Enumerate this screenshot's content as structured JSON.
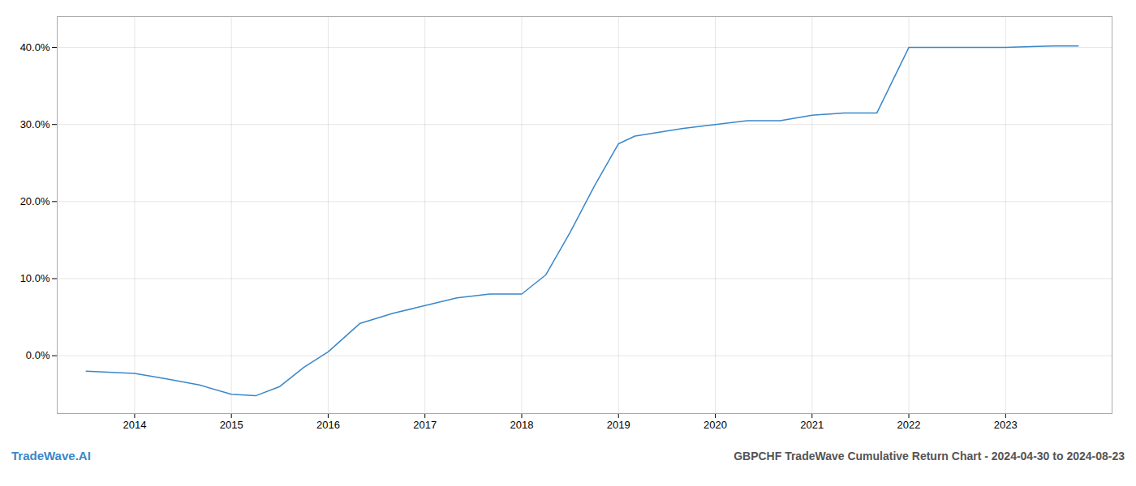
{
  "chart_data": {
    "type": "line",
    "title": "GBPCHF TradeWave Cumulative Return Chart - 2024-04-30 to 2024-08-23",
    "annotations": [
      {
        "text": "TradeWave.AI",
        "color": "#3a87c8"
      }
    ],
    "x": [
      2013.5,
      2014.0,
      2014.33,
      2014.67,
      2015.0,
      2015.25,
      2015.5,
      2015.75,
      2016.0,
      2016.33,
      2016.67,
      2017.0,
      2017.33,
      2017.67,
      2017.92,
      2018.0,
      2018.25,
      2018.5,
      2018.75,
      2019.0,
      2019.17,
      2019.42,
      2019.67,
      2020.0,
      2020.33,
      2020.67,
      2021.0,
      2021.33,
      2021.5,
      2021.67,
      2022.0,
      2022.33,
      2022.67,
      2023.0,
      2023.5,
      2023.75
    ],
    "values": [
      -2.0,
      -2.3,
      -3.0,
      -3.8,
      -5.0,
      -5.2,
      -4.0,
      -1.5,
      0.5,
      4.2,
      5.5,
      6.5,
      7.5,
      8.0,
      8.0,
      8.0,
      10.5,
      16.0,
      22.0,
      27.5,
      28.5,
      29.0,
      29.5,
      30.0,
      30.5,
      30.5,
      31.2,
      31.5,
      31.5,
      31.5,
      40.0,
      40.0,
      40.0,
      40.0,
      40.2,
      40.2
    ],
    "color": "#3a87c8",
    "xlim": [
      2013.2,
      2024.1
    ],
    "xticks": [
      2014,
      2015,
      2016,
      2017,
      2018,
      2019,
      2020,
      2021,
      2022,
      2023
    ],
    "ylim": [
      -7.5,
      44
    ],
    "yticks": [
      {
        "value": 0,
        "label": "0.0%"
      },
      {
        "value": 10,
        "label": "10.0%"
      },
      {
        "value": 20,
        "label": "20.0%"
      },
      {
        "value": 30,
        "label": "30.0%"
      },
      {
        "value": 40,
        "label": "40.0%"
      }
    ],
    "grid": true
  }
}
